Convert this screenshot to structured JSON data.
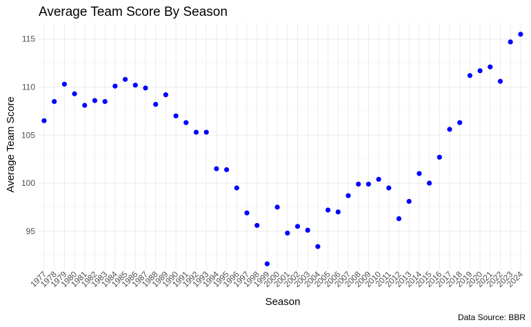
{
  "chart_data": {
    "type": "scatter",
    "title": "Average Team Score By Season",
    "xlabel": "Season",
    "ylabel": "Average Team Score",
    "caption": "Data Source: BBR",
    "point_color": "#0000ff",
    "grid": true,
    "legend": "none",
    "ylim": [
      90.9,
      116.7
    ],
    "yticks": [
      "95",
      "100",
      "105",
      "110",
      "115"
    ],
    "x": [
      "1977",
      "1978",
      "1979",
      "1980",
      "1981",
      "1982",
      "1983",
      "1984",
      "1985",
      "1986",
      "1987",
      "1988",
      "1989",
      "1990",
      "1991",
      "1992",
      "1993",
      "1994",
      "1995",
      "1996",
      "1997",
      "1998",
      "1999",
      "2000",
      "2001",
      "2002",
      "2003",
      "2004",
      "2005",
      "2006",
      "2007",
      "2008",
      "2009",
      "2010",
      "2011",
      "2012",
      "2013",
      "2014",
      "2015",
      "2016",
      "2017",
      "2018",
      "2019",
      "2020",
      "2021",
      "2022",
      "2023",
      "2024"
    ],
    "y": [
      106.5,
      108.5,
      110.3,
      109.3,
      108.1,
      108.6,
      108.5,
      110.1,
      110.8,
      110.2,
      109.9,
      108.2,
      109.2,
      107.0,
      106.3,
      105.3,
      105.3,
      101.5,
      101.4,
      99.5,
      96.9,
      95.6,
      91.6,
      97.5,
      94.8,
      95.5,
      95.1,
      93.4,
      97.2,
      97.0,
      98.7,
      99.9,
      99.9,
      100.4,
      99.5,
      96.3,
      98.1,
      101.0,
      100.0,
      102.7,
      105.6,
      106.3,
      111.2,
      111.7,
      112.1,
      110.6,
      114.7,
      115.5
    ]
  }
}
